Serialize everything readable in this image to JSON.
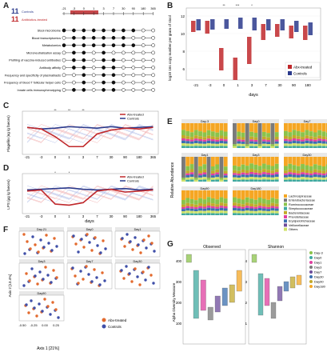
{
  "panels": {
    "A": {
      "label": "A",
      "groups": [
        {
          "count": "11",
          "name": "Controls",
          "color": "#2b3a8c"
        },
        {
          "count": "11",
          "name": "Antibiotics-treated",
          "color": "#c0282b"
        }
      ],
      "days": [
        "-21",
        "-3",
        "0",
        "1",
        "3",
        "7",
        "30",
        "90",
        "180",
        "365"
      ],
      "rows": [
        {
          "label": "Stool microbiome",
          "pattern": "ffffffffoo"
        },
        {
          "label": "Blood transcriptomics",
          "pattern": "offffffooo"
        },
        {
          "label": "Metabolomics",
          "pattern": "ffffffffoo"
        },
        {
          "label": "Microneutralisation assay",
          "pattern": "offofooooo"
        },
        {
          "label": "Profiling of vaccine-induced antibodies",
          "pattern": "offoffoooo"
        },
        {
          "label": "Antibody affinity",
          "pattern": "offoffoooo"
        },
        {
          "label": "Frequency and specificity of plasmablasts",
          "pattern": "oofoffoooo"
        },
        {
          "label": "Frequency of blood T follicular helper cells",
          "pattern": "oofoffoooo"
        },
        {
          "label": "Innate cells immunophenotyping",
          "pattern": "offoffoooo"
        }
      ]
    },
    "B": {
      "label": "B",
      "ylabel": "log10 16s copy number per gram of stool",
      "xlabel": "days",
      "yticks": [
        "12",
        "10",
        "8",
        "6"
      ],
      "sig": [
        "**",
        "***",
        "*"
      ],
      "legend": [
        {
          "name": "Abx-treated",
          "color": "#c0282b"
        },
        {
          "name": "Controls",
          "color": "#2b3a8c"
        }
      ]
    },
    "C": {
      "label": "C",
      "ylabel": "Flagellin\n(ng /g faeces)",
      "sig": [
        "**",
        "**",
        "**"
      ],
      "legend": [
        {
          "name": "Abx-treated",
          "color": "#c0282b"
        },
        {
          "name": "Controls",
          "color": "#2b3a8c"
        }
      ]
    },
    "D": {
      "label": "D",
      "ylabel": "LPS\n(μg /g faeces)",
      "xlabel": "days",
      "sig": [
        "*",
        "*"
      ],
      "legend": [
        {
          "name": "Abx-treated",
          "color": "#c0282b"
        },
        {
          "name": "Controls",
          "color": "#2b3a8c"
        }
      ]
    },
    "E": {
      "label": "E",
      "ylabel": "Relative Abundance",
      "facets": [
        "Day-3",
        "Day0",
        "Day7",
        "Day1",
        "Day3",
        "Day30",
        "Day90",
        "Day180"
      ],
      "families": [
        {
          "name": "Lachnospiraceae",
          "color": "#f5a623"
        },
        {
          "name": "Enterobacteriaceae",
          "color": "#7a7a7a"
        },
        {
          "name": "Ruminococcaceae",
          "color": "#8bc34a"
        },
        {
          "name": "Streptococcaceae",
          "color": "#3fa9a0"
        },
        {
          "name": "Bacteroidaceae",
          "color": "#c2a92a"
        },
        {
          "name": "Prevotellaceae",
          "color": "#e040a0"
        },
        {
          "name": "Erysipelotrichaceae",
          "color": "#3a6fb0"
        },
        {
          "name": "Veillonellaceae",
          "color": "#6d4c9b"
        },
        {
          "name": "Others",
          "color": "#cfe26a"
        }
      ]
    },
    "F": {
      "label": "F",
      "facets": [
        "Day-21",
        "Day0",
        "Day1",
        "Day3",
        "Day7",
        "Day30",
        "Day90"
      ],
      "xlabel": "Axis 1  [21%]",
      "ylabel": "Axis 2  [13.4%]",
      "xticks": [
        "-0.50",
        "-0.25",
        "0.00",
        "0.25"
      ],
      "legend": [
        {
          "name": "Abx-treated",
          "color": "#e36a2e"
        },
        {
          "name": "Controls",
          "color": "#3f4fa8"
        }
      ]
    },
    "G": {
      "label": "G",
      "titles": [
        "Observed",
        "Shannon"
      ],
      "ylabel": "Alpha Diversity Measure",
      "yticks": [
        "400",
        "300",
        "200",
        "100"
      ],
      "yticks_right": [
        "4",
        "3",
        "2",
        "1"
      ],
      "legend": [
        {
          "name": "Day-3",
          "color": "#8bc34a"
        },
        {
          "name": "Day0",
          "color": "#3fa9a0"
        },
        {
          "name": "Day1",
          "color": "#e040a0"
        },
        {
          "name": "Day3",
          "color": "#7a7a7a"
        },
        {
          "name": "Day7",
          "color": "#6d4c9b"
        },
        {
          "name": "Day30",
          "color": "#3a6fb0"
        },
        {
          "name": "Day90",
          "color": "#c2a92a"
        },
        {
          "name": "Day180",
          "color": "#f5a623"
        }
      ]
    }
  }
}
